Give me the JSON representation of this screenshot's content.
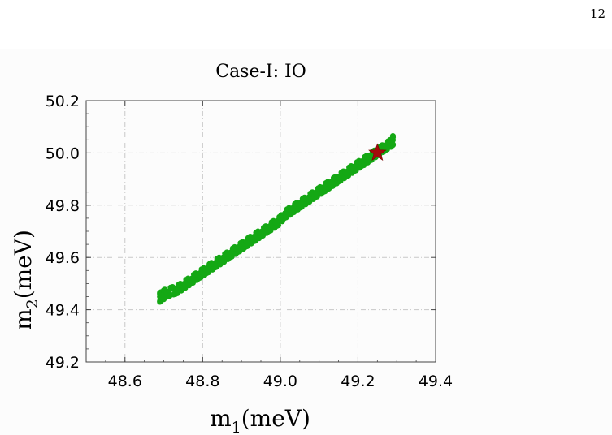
{
  "page": {
    "number": "12"
  },
  "chart_data": {
    "type": "scatter",
    "title": "Case-I: IO",
    "xlabel": "m1(meV)",
    "ylabel": "m2(meV)",
    "xlabel_parts": {
      "base": "m",
      "sub": "1",
      "rest": "(meV)"
    },
    "ylabel_parts": {
      "base": "m",
      "sub": "2",
      "rest": "(meV)"
    },
    "xlim": [
      48.5,
      49.4
    ],
    "ylim": [
      49.2,
      50.2
    ],
    "xticks": [
      "48.6",
      "48.8",
      "49.0",
      "49.2",
      "49.4"
    ],
    "yticks": [
      "49.2",
      "49.4",
      "49.6",
      "49.8",
      "50.0",
      "50.2"
    ],
    "grid": true,
    "series": [
      {
        "color": "#14a814",
        "points": [
          [
            48.69,
            49.43
          ],
          [
            48.69,
            49.46
          ],
          [
            48.7,
            49.44
          ],
          [
            48.7,
            49.47
          ],
          [
            48.71,
            49.45
          ],
          [
            48.72,
            49.48
          ],
          [
            48.73,
            49.46
          ],
          [
            48.74,
            49.49
          ],
          [
            48.75,
            49.48
          ],
          [
            48.76,
            49.51
          ],
          [
            48.77,
            49.5
          ],
          [
            48.78,
            49.53
          ],
          [
            48.79,
            49.52
          ],
          [
            48.8,
            49.55
          ],
          [
            48.81,
            49.54
          ],
          [
            48.82,
            49.57
          ],
          [
            48.83,
            49.56
          ],
          [
            48.84,
            49.59
          ],
          [
            48.85,
            49.58
          ],
          [
            48.86,
            49.61
          ],
          [
            48.87,
            49.6
          ],
          [
            48.88,
            49.63
          ],
          [
            48.89,
            49.62
          ],
          [
            48.9,
            49.65
          ],
          [
            48.91,
            49.64
          ],
          [
            48.92,
            49.67
          ],
          [
            48.93,
            49.66
          ],
          [
            48.94,
            49.69
          ],
          [
            48.95,
            49.68
          ],
          [
            48.96,
            49.71
          ],
          [
            48.97,
            49.7
          ],
          [
            48.98,
            49.73
          ],
          [
            48.99,
            49.72
          ],
          [
            49.0,
            49.75
          ],
          [
            49.01,
            49.75
          ],
          [
            49.02,
            49.78
          ],
          [
            49.03,
            49.77
          ],
          [
            49.04,
            49.8
          ],
          [
            49.05,
            49.79
          ],
          [
            49.06,
            49.82
          ],
          [
            49.07,
            49.81
          ],
          [
            49.08,
            49.84
          ],
          [
            49.09,
            49.83
          ],
          [
            49.1,
            49.86
          ],
          [
            49.11,
            49.85
          ],
          [
            49.12,
            49.88
          ],
          [
            49.13,
            49.87
          ],
          [
            49.14,
            49.9
          ],
          [
            49.15,
            49.89
          ],
          [
            49.16,
            49.92
          ],
          [
            49.17,
            49.91
          ],
          [
            49.18,
            49.94
          ],
          [
            49.19,
            49.93
          ],
          [
            49.2,
            49.96
          ],
          [
            49.21,
            49.95
          ],
          [
            49.22,
            49.98
          ],
          [
            49.23,
            49.97
          ],
          [
            49.24,
            50.0
          ],
          [
            49.25,
            49.99
          ],
          [
            49.26,
            50.02
          ],
          [
            49.27,
            50.01
          ],
          [
            49.28,
            50.04
          ],
          [
            49.29,
            50.03
          ],
          [
            49.29,
            50.06
          ]
        ]
      }
    ],
    "marker": {
      "symbol": "star",
      "color": "#a50b0b",
      "x": 49.25,
      "y": 50.0
    }
  }
}
